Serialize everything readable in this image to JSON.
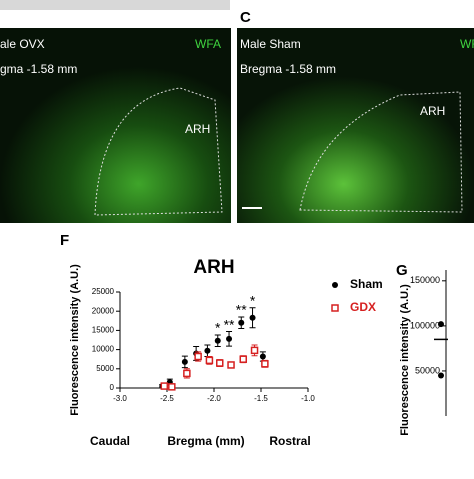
{
  "images": {
    "left": {
      "title": "ale OVX",
      "stain": "WFA",
      "bregma": "gma -1.58 mm",
      "region": "ARH"
    },
    "right": {
      "panel": "C",
      "title": "Male Sham",
      "stain": "WFA",
      "bregma": "Bregma -1.58 mm",
      "region": "ARH"
    }
  },
  "chart_data": [
    {
      "type": "scatter",
      "panel": "F",
      "title": "ARH",
      "x_label": "Bregma (mm)",
      "x_annotations": [
        "Caudal",
        "Rostral"
      ],
      "y_label": "Fluorescence intensity (A.U.)",
      "xlim": [
        -3,
        -1
      ],
      "xticks": [
        {
          "value": -3,
          "label": "-3.0"
        },
        -2.5,
        {
          "value": -2,
          "label": "-2.0"
        },
        -1.5,
        {
          "value": -1,
          "label": "-1.0"
        }
      ],
      "ylim": [
        0,
        25000
      ],
      "yticks": [
        0,
        5000,
        10000,
        15000,
        20000,
        25000
      ],
      "x": [
        -2.55,
        -2.47,
        -2.31,
        -2.19,
        -2.07,
        -1.96,
        -1.84,
        -1.71,
        -1.59,
        -1.48
      ],
      "series": [
        {
          "name": "Sham",
          "color": "#000000",
          "marker": "circle",
          "values": [
            500,
            1500,
            6800,
            9000,
            9700,
            12300,
            12800,
            17000,
            18300,
            8200
          ],
          "errors": [
            400,
            800,
            1500,
            1800,
            1500,
            1500,
            1900,
            1500,
            2600,
            1200
          ]
        },
        {
          "name": "GDX",
          "color": "#d62020",
          "marker": "square-open",
          "values": [
            500,
            300,
            3800,
            8200,
            7200,
            6500,
            6000,
            7500,
            9800,
            6300
          ],
          "errors": [
            300,
            300,
            1200,
            1200,
            1000,
            900,
            600,
            900,
            1400,
            900
          ]
        }
      ],
      "annotations": [
        {
          "text": "*",
          "x": -1.96
        },
        {
          "text": "**",
          "x": -1.84
        },
        {
          "text": "**",
          "x": -1.71
        },
        {
          "text": "*",
          "x": -1.59
        }
      ]
    },
    {
      "type": "dots",
      "panel": "G",
      "y_label": "Fluorescence intensity (A.U.)",
      "ylim": [
        0,
        162000
      ],
      "yticks": [
        50000,
        100000,
        150000
      ],
      "values": [
        102000,
        45000
      ],
      "mean": 85000
    }
  ]
}
